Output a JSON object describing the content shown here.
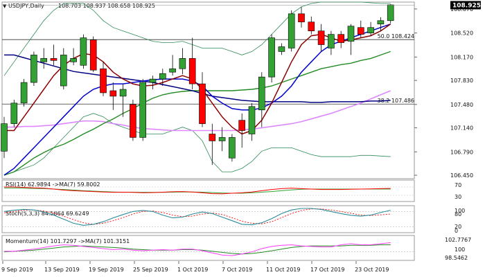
{
  "header": {
    "symbol": "USDJPY,Daily",
    "ohlc": "108.703 108.937 108.658 108.925"
  },
  "colors": {
    "bull": "#33a133",
    "bear": "#ff0000",
    "ma_fast": "#8b0000",
    "ma_mid": "#0000cd",
    "ma_green": "#228b22",
    "ma_pink": "#ff3cff",
    "ma_violet": "#dd88ff",
    "bollinger": "#2e8b57",
    "fib": "#333333",
    "price_box": "#000000"
  },
  "price_axis": {
    "ticks": [
      "108.870",
      "108.520",
      "108.170",
      "107.830",
      "107.480",
      "107.140",
      "106.790",
      "106.450"
    ],
    "current_price": "108.925"
  },
  "fib_levels": [
    {
      "label": "50.0 108.424",
      "value": 108.424
    },
    {
      "label": "38.2 107.486",
      "value": 107.486
    }
  ],
  "x_axis": {
    "dates": [
      "9 Sep 2019",
      "13 Sep 2019",
      "19 Sep 2019",
      "25 Sep 2019",
      "1 Oct 2019",
      "7 Oct 2019",
      "11 Oct 2019",
      "17 Oct 2019",
      "23 Oct 2019"
    ]
  },
  "panels": {
    "rsi": {
      "label": "RSI(14) 62.9894 ->MA(7) 59.8002",
      "axis": [
        "70",
        "30"
      ]
    },
    "stoch": {
      "label": "Stoch(5,3,3) 84.5864 69.6249",
      "axis": [
        "100",
        "80",
        "20",
        "0"
      ]
    },
    "momentum": {
      "label": "Momentum(14) 101.7297 ->MA(7) 101.3151",
      "axis": [
        "102.7767",
        "100",
        "98.5462"
      ]
    }
  },
  "chart_data": {
    "type": "candlestick",
    "symbol": "USDJPY",
    "timeframe": "Daily",
    "ylim": [
      106.4,
      108.97
    ],
    "candles": [
      {
        "o": 106.8,
        "h": 107.3,
        "l": 106.7,
        "c": 107.2
      },
      {
        "o": 107.2,
        "h": 107.55,
        "l": 107.15,
        "c": 107.5
      },
      {
        "o": 107.5,
        "h": 107.85,
        "l": 107.45,
        "c": 107.8
      },
      {
        "o": 107.8,
        "h": 108.25,
        "l": 107.75,
        "c": 108.2
      },
      {
        "o": 108.1,
        "h": 108.3,
        "l": 108.0,
        "c": 108.15
      },
      {
        "o": 108.15,
        "h": 108.35,
        "l": 108.05,
        "c": 108.12
      },
      {
        "o": 107.75,
        "h": 108.3,
        "l": 107.7,
        "c": 108.2
      },
      {
        "o": 108.1,
        "h": 108.3,
        "l": 108.05,
        "c": 108.15
      },
      {
        "o": 108.05,
        "h": 108.5,
        "l": 108.0,
        "c": 108.45
      },
      {
        "o": 108.42,
        "h": 108.47,
        "l": 107.95,
        "c": 107.98
      },
      {
        "o": 108.0,
        "h": 108.1,
        "l": 107.6,
        "c": 107.65
      },
      {
        "o": 107.68,
        "h": 107.8,
        "l": 107.4,
        "c": 107.6
      },
      {
        "o": 107.6,
        "h": 107.78,
        "l": 107.3,
        "c": 107.7
      },
      {
        "o": 107.48,
        "h": 107.55,
        "l": 106.95,
        "c": 107.0
      },
      {
        "o": 107.0,
        "h": 107.85,
        "l": 106.95,
        "c": 107.8
      },
      {
        "o": 107.8,
        "h": 107.9,
        "l": 107.7,
        "c": 107.85
      },
      {
        "o": 107.85,
        "h": 108.0,
        "l": 107.75,
        "c": 107.93
      },
      {
        "o": 107.95,
        "h": 108.2,
        "l": 107.9,
        "c": 108.0
      },
      {
        "o": 108.0,
        "h": 108.3,
        "l": 107.92,
        "c": 108.15
      },
      {
        "o": 108.15,
        "h": 108.45,
        "l": 107.7,
        "c": 107.78
      },
      {
        "o": 107.78,
        "h": 107.95,
        "l": 107.15,
        "c": 107.2
      },
      {
        "o": 107.05,
        "h": 107.2,
        "l": 106.6,
        "c": 106.95
      },
      {
        "o": 106.95,
        "h": 107.15,
        "l": 106.8,
        "c": 107.0
      },
      {
        "o": 106.7,
        "h": 107.05,
        "l": 106.65,
        "c": 107.0
      },
      {
        "o": 107.25,
        "h": 107.35,
        "l": 106.85,
        "c": 107.1
      },
      {
        "o": 107.05,
        "h": 107.5,
        "l": 106.95,
        "c": 107.45
      },
      {
        "o": 107.4,
        "h": 107.95,
        "l": 107.15,
        "c": 107.88
      },
      {
        "o": 107.88,
        "h": 108.5,
        "l": 107.8,
        "c": 108.45
      },
      {
        "o": 108.25,
        "h": 108.37,
        "l": 108.2,
        "c": 108.32
      },
      {
        "o": 108.3,
        "h": 108.85,
        "l": 108.25,
        "c": 108.8
      },
      {
        "o": 108.8,
        "h": 108.9,
        "l": 108.6,
        "c": 108.68
      },
      {
        "o": 108.68,
        "h": 108.76,
        "l": 108.5,
        "c": 108.55
      },
      {
        "o": 108.55,
        "h": 108.65,
        "l": 108.25,
        "c": 108.35
      },
      {
        "o": 108.3,
        "h": 108.55,
        "l": 108.2,
        "c": 108.5
      },
      {
        "o": 108.5,
        "h": 108.55,
        "l": 108.3,
        "c": 108.38
      },
      {
        "o": 108.4,
        "h": 108.65,
        "l": 108.2,
        "c": 108.62
      },
      {
        "o": 108.6,
        "h": 108.7,
        "l": 108.45,
        "c": 108.5
      },
      {
        "o": 108.52,
        "h": 108.68,
        "l": 108.48,
        "c": 108.6
      },
      {
        "o": 108.65,
        "h": 108.75,
        "l": 108.55,
        "c": 108.7
      },
      {
        "o": 108.7,
        "h": 108.94,
        "l": 108.66,
        "c": 108.93
      }
    ],
    "ma_fast": [
      107.1,
      107.1,
      107.3,
      107.5,
      107.7,
      107.9,
      108.05,
      108.15,
      108.22,
      108.2,
      108.1,
      107.95,
      107.85,
      107.78,
      107.75,
      107.76,
      107.8,
      107.85,
      107.9,
      107.85,
      107.7,
      107.5,
      107.3,
      107.15,
      107.05,
      107.1,
      107.25,
      107.5,
      107.8,
      108.1,
      108.35,
      108.48,
      108.5,
      108.45,
      108.4,
      108.42,
      108.45,
      108.48,
      108.55,
      108.65
    ],
    "ma_mid": [
      106.45,
      106.55,
      106.7,
      106.85,
      107.0,
      107.15,
      107.3,
      107.45,
      107.6,
      107.7,
      107.75,
      107.78,
      107.78,
      107.8,
      107.82,
      107.84,
      107.85,
      107.85,
      107.85,
      107.82,
      107.75,
      107.6,
      107.5,
      107.42,
      107.4,
      107.4,
      107.43,
      107.5,
      107.6,
      107.75,
      107.95,
      108.1,
      108.25,
      108.35,
      108.4,
      108.45,
      108.5,
      108.55,
      108.6,
      108.65
    ],
    "ma_green": [
      106.45,
      106.5,
      106.6,
      106.7,
      106.78,
      106.85,
      106.9,
      106.97,
      107.05,
      107.12,
      107.2,
      107.27,
      107.35,
      107.42,
      107.5,
      107.57,
      107.62,
      107.65,
      107.67,
      107.68,
      107.68,
      107.68,
      107.68,
      107.68,
      107.69,
      107.7,
      107.72,
      107.75,
      107.8,
      107.85,
      107.9,
      107.95,
      108.0,
      108.03,
      108.06,
      108.08,
      108.12,
      108.15,
      108.2,
      108.25
    ],
    "ma_pink": [
      107.15,
      107.15,
      107.16,
      107.16,
      107.17,
      107.18,
      107.2,
      107.22,
      107.24,
      107.24,
      107.23,
      107.2,
      107.18,
      107.15,
      107.13,
      107.12,
      107.11,
      107.1,
      107.1,
      107.1,
      107.1,
      107.1,
      107.1,
      107.1,
      107.11,
      107.12,
      107.14,
      107.16,
      107.18,
      107.2,
      107.23,
      107.27,
      107.31,
      107.35,
      107.4,
      107.45,
      107.5,
      107.56,
      107.62,
      107.68
    ],
    "ma_blue_long": [
      108.2,
      108.2,
      108.16,
      108.12,
      108.08,
      108.04,
      108.0,
      107.96,
      107.94,
      107.92,
      107.9,
      107.88,
      107.86,
      107.84,
      107.82,
      107.8,
      107.77,
      107.74,
      107.71,
      107.68,
      107.64,
      107.6,
      107.58,
      107.56,
      107.54,
      107.53,
      107.52,
      107.52,
      107.52,
      107.52,
      107.52,
      107.51,
      107.51,
      107.52,
      107.52,
      107.52,
      107.52,
      107.53,
      107.53,
      107.54
    ],
    "bb_upper": [
      107.9,
      108.1,
      108.3,
      108.5,
      108.7,
      108.85,
      108.95,
      108.95,
      108.95,
      108.85,
      108.7,
      108.6,
      108.55,
      108.5,
      108.45,
      108.4,
      108.38,
      108.38,
      108.4,
      108.35,
      108.3,
      108.3,
      108.3,
      108.25,
      108.2,
      108.25,
      108.35,
      108.5,
      108.65,
      108.8,
      108.9,
      108.95,
      108.97,
      108.97,
      108.97,
      108.97,
      108.97,
      108.96,
      108.95,
      108.95
    ],
    "bb_lower": [
      106.45,
      106.5,
      106.55,
      106.6,
      106.7,
      106.85,
      107.0,
      107.15,
      107.3,
      107.35,
      107.3,
      107.2,
      107.15,
      107.1,
      107.05,
      107.05,
      107.05,
      107.1,
      107.15,
      107.1,
      106.95,
      106.65,
      106.5,
      106.5,
      106.55,
      106.65,
      106.8,
      106.85,
      106.85,
      106.85,
      106.8,
      106.75,
      106.72,
      106.72,
      106.72,
      106.72,
      106.74,
      106.74,
      106.73,
      106.72
    ],
    "rsi": [
      70,
      70,
      68,
      66,
      64,
      60,
      55,
      52,
      50,
      48,
      46,
      44,
      45,
      44,
      42,
      43,
      45,
      47,
      48,
      46,
      42,
      38,
      37,
      40,
      42,
      46,
      52,
      58,
      62,
      64,
      62,
      60,
      58,
      58,
      58,
      59,
      60,
      61,
      62,
      63
    ],
    "rsi_ma": [
      65,
      65,
      64,
      63,
      62,
      60,
      58,
      55,
      52,
      50,
      48,
      46,
      45,
      45,
      44,
      44,
      44,
      45,
      46,
      46,
      45,
      43,
      41,
      40,
      40,
      42,
      45,
      48,
      52,
      56,
      59,
      60,
      60,
      60,
      60,
      60,
      60,
      60,
      60,
      60
    ],
    "stoch_k": [
      80,
      85,
      88,
      86,
      78,
      66,
      50,
      34,
      26,
      30,
      40,
      55,
      68,
      80,
      84,
      80,
      66,
      55,
      58,
      70,
      78,
      72,
      58,
      44,
      30,
      28,
      36,
      52,
      72,
      86,
      92,
      92,
      88,
      80,
      72,
      65,
      62,
      66,
      76,
      85
    ],
    "stoch_d": [
      75,
      80,
      85,
      86,
      82,
      74,
      62,
      48,
      36,
      30,
      34,
      44,
      56,
      70,
      80,
      82,
      76,
      66,
      60,
      62,
      70,
      74,
      68,
      56,
      42,
      34,
      32,
      40,
      56,
      72,
      84,
      90,
      90,
      86,
      80,
      73,
      66,
      64,
      67,
      70
    ],
    "momentum": [
      100.1,
      100.1,
      100.3,
      100.5,
      100.8,
      101.1,
      101.3,
      101.2,
      101.0,
      100.8,
      100.6,
      100.4,
      100.5,
      100.3,
      100.2,
      100.3,
      100.4,
      100.3,
      100.5,
      100.5,
      100.2,
      99.8,
      99.4,
      99.3,
      99.6,
      100.0,
      100.6,
      101.0,
      101.2,
      101.3,
      101.1,
      101.0,
      100.9,
      100.9,
      101.3,
      101.5,
      101.3,
      101.3,
      101.5,
      101.7
    ],
    "momentum_ma": [
      100.0,
      100.1,
      100.2,
      100.3,
      100.5,
      100.7,
      100.9,
      101.0,
      101.1,
      101.0,
      100.9,
      100.8,
      100.7,
      100.5,
      100.4,
      100.3,
      100.3,
      100.3,
      100.4,
      100.4,
      100.3,
      100.1,
      99.9,
      99.7,
      99.6,
      99.7,
      99.9,
      100.2,
      100.5,
      100.8,
      101.0,
      101.1,
      101.1,
      101.1,
      101.1,
      101.2,
      101.2,
      101.2,
      101.3,
      101.3
    ]
  }
}
